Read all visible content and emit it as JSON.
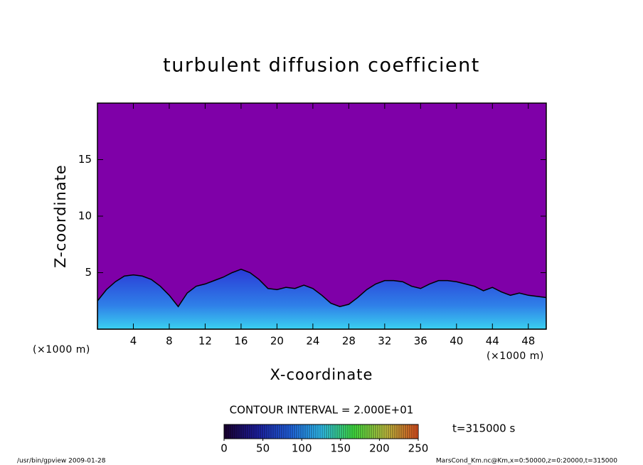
{
  "chart_data": {
    "type": "contour",
    "title": "turbulent diffusion coefficient",
    "x_label": "X-coordinate",
    "y_label": "Z-coordinate",
    "x_unit_label": "(×1000 m)",
    "x_unit_label_right": "(×1000 m)",
    "xlim": [
      0,
      50
    ],
    "ylim": [
      0,
      20
    ],
    "xticks": [
      4,
      8,
      12,
      16,
      20,
      24,
      28,
      32,
      36,
      40,
      44,
      48
    ],
    "yticks": [
      5,
      10,
      15
    ],
    "background_color": "#7f00a8",
    "layer_color": "#2a3bd6",
    "x": [
      0,
      1,
      2,
      3,
      4,
      5,
      6,
      7,
      8,
      9,
      10,
      11,
      12,
      13,
      14,
      15,
      16,
      17,
      18,
      19,
      20,
      21,
      22,
      23,
      24,
      25,
      26,
      27,
      28,
      29,
      30,
      31,
      32,
      33,
      34,
      35,
      36,
      37,
      38,
      39,
      40,
      41,
      42,
      43,
      44,
      45,
      46,
      47,
      48,
      49,
      50
    ],
    "values": [
      2.5,
      3.5,
      4.2,
      4.7,
      4.8,
      4.7,
      4.4,
      3.8,
      3.0,
      2.0,
      3.2,
      3.8,
      4.0,
      4.3,
      4.6,
      5.0,
      5.3,
      5.0,
      4.4,
      3.6,
      3.5,
      3.7,
      3.6,
      3.9,
      3.6,
      3.0,
      2.3,
      2.0,
      2.2,
      2.8,
      3.5,
      4.0,
      4.3,
      4.3,
      4.2,
      3.8,
      3.6,
      4.0,
      4.3,
      4.3,
      4.2,
      4.0,
      3.8,
      3.4,
      3.7,
      3.3,
      3.0,
      3.2,
      3.0,
      2.9,
      2.8
    ],
    "contour_interval": "CONTOUR INTERVAL = 2.000E+01",
    "time_label": "t=315000 s",
    "colorbar": {
      "lim": [
        0,
        250
      ],
      "ticks": [
        0,
        50,
        100,
        150,
        200,
        250
      ],
      "colors": [
        "#1a0030",
        "#1e1ea0",
        "#2060e0",
        "#30c0f0",
        "#40e040",
        "#c0c040",
        "#e05020"
      ]
    },
    "footer_left": "/usr/bin/gpview   2009-01-28",
    "footer_right": "MarsCond_Km.nc@Km,x=0:50000,z=0:20000,t=315000"
  }
}
